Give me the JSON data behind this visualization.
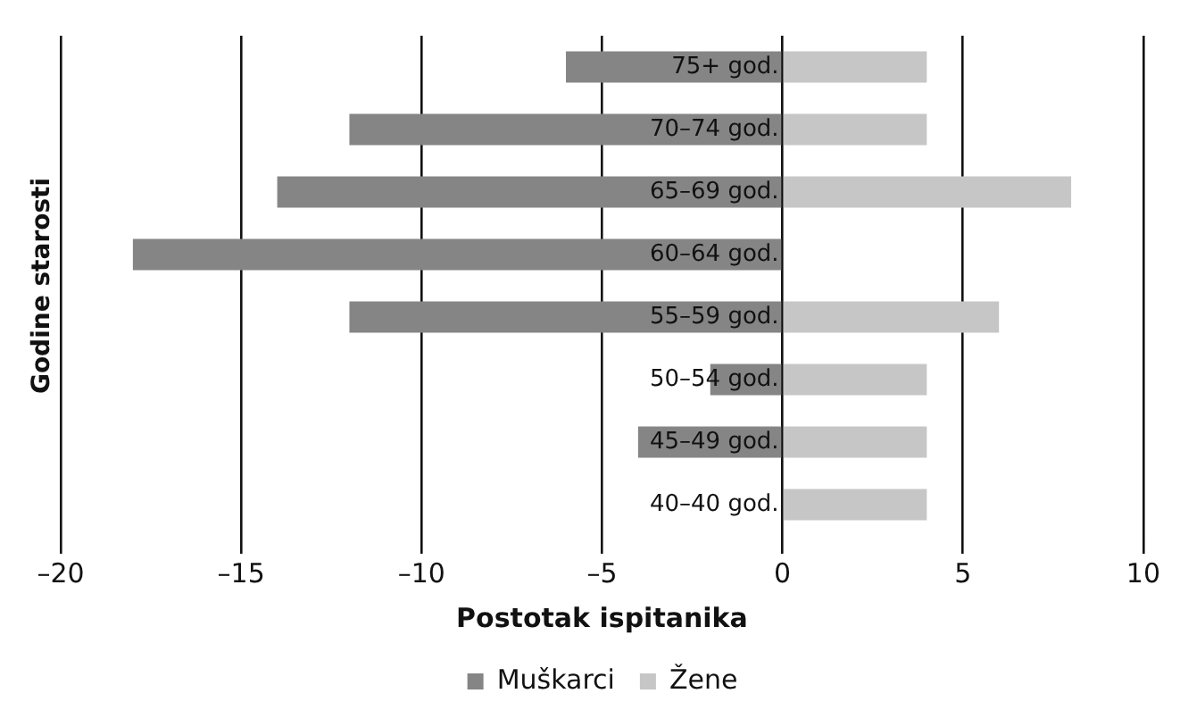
{
  "chart_data": {
    "type": "bar",
    "orientation": "horizontal",
    "stacked": true,
    "categories": [
      "75+ god.",
      "70–74 god.",
      "65–69 god.",
      "60–64 god.",
      "55–59 god.",
      "50–54 god.",
      "45–49 god.",
      "40–40 god."
    ],
    "series": [
      {
        "name": "Muškarci",
        "color": "#858585",
        "values": [
          -6,
          -12,
          -14,
          -18,
          -12,
          -2,
          -4,
          0
        ]
      },
      {
        "name": "Žene",
        "color": "#c6c6c6",
        "values": [
          4,
          4,
          8,
          0,
          6,
          4,
          4,
          4
        ]
      }
    ],
    "xlim": [
      -20,
      10
    ],
    "xticks": [
      {
        "value": -20,
        "label": "–20"
      },
      {
        "value": -15,
        "label": "–15"
      },
      {
        "value": -10,
        "label": "–10"
      },
      {
        "value": -5,
        "label": "–5"
      },
      0,
      5,
      10
    ],
    "xlabel": "Postotak ispitanika",
    "ylabel": "Godine starosti",
    "grid": "x",
    "legend": "bottom"
  }
}
